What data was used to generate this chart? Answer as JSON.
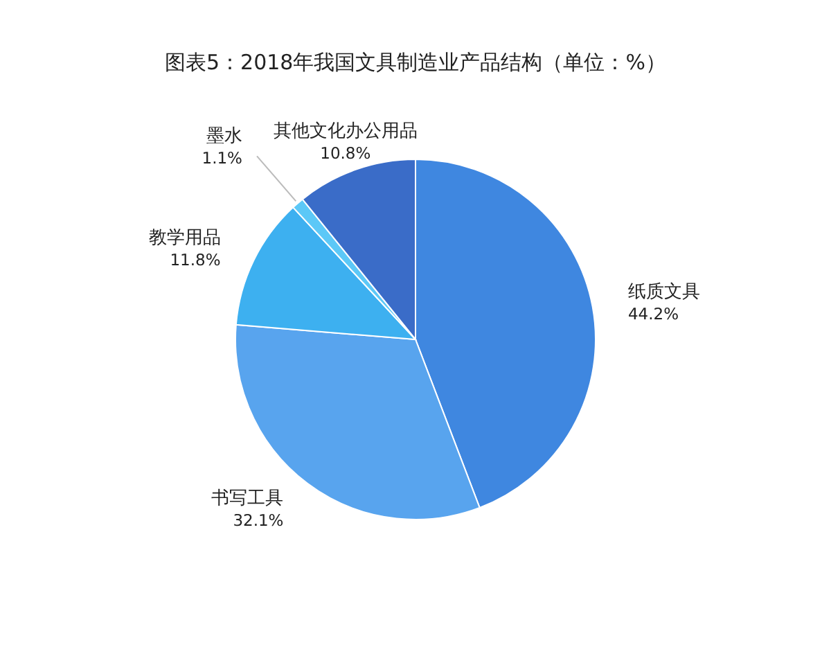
{
  "chart_data": {
    "type": "pie",
    "title": "图表5：2018年我国文具制造业产品结构（单位：%）",
    "categories": [
      "纸质文具",
      "书写工具",
      "教学用品",
      "墨水",
      "其他文化办公用品"
    ],
    "values": [
      44.2,
      32.1,
      11.8,
      1.1,
      10.8
    ],
    "value_labels": [
      "44.2%",
      "32.1%",
      "11.8%",
      "1.1%",
      "10.8%"
    ],
    "colors": [
      "#3f87e0",
      "#58a4ee",
      "#3db0f0",
      "#5cc8f7",
      "#3a6cc8"
    ]
  }
}
